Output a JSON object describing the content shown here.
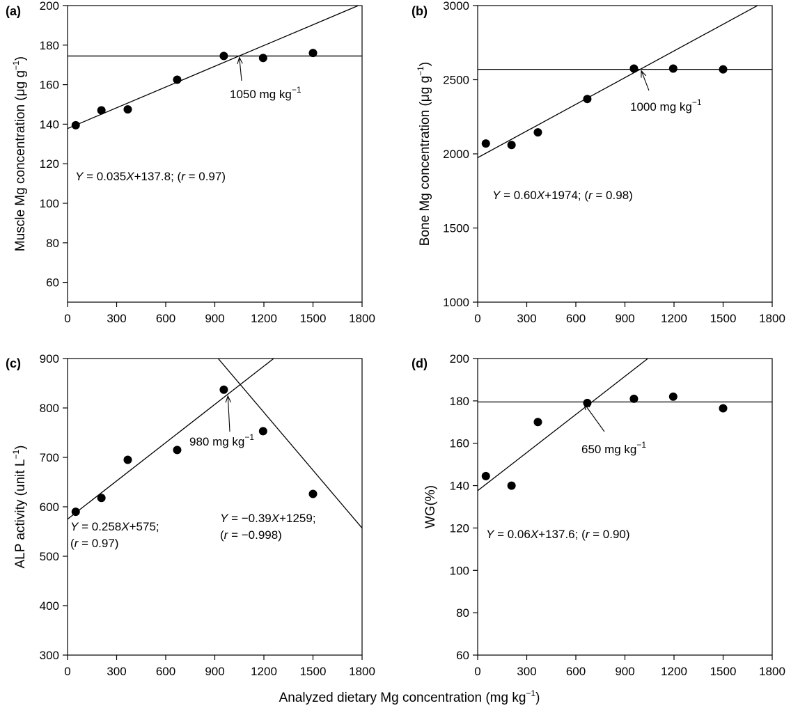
{
  "figure": {
    "shared_xlabel": "Analyzed dietary Mg concentration (mg kg−1)",
    "shared_xlabel_base": "Analyzed dietary Mg concentration (mg kg",
    "shared_xlabel_sup": "−1",
    "shared_xlabel_end": ")"
  },
  "chart_data": [
    {
      "type": "scatter",
      "panel": "(a)",
      "ylabel": "Muscle Mg concentration (μg g−1)",
      "ylabel_base": "Muscle Mg concentration (μg g",
      "ylabel_sup": "−1",
      "ylabel_end": ")",
      "xlim": [
        0,
        1800
      ],
      "ylim": [
        50,
        200
      ],
      "xticks": [
        0,
        300,
        600,
        900,
        1200,
        1500,
        1800
      ],
      "yticks": [
        60,
        80,
        100,
        120,
        140,
        160,
        180,
        200
      ],
      "x": [
        50,
        207,
        368,
        670,
        955,
        1195,
        1500
      ],
      "y": [
        139.5,
        147,
        147.5,
        162.5,
        174.5,
        173.5,
        176
      ],
      "lines": [
        {
          "kind": "linear",
          "slope": 0.035,
          "intercept": 137.8,
          "x_range": [
            0,
            1800
          ]
        },
        {
          "kind": "horizontal",
          "y": 174.5,
          "x_range": [
            0,
            1800
          ]
        }
      ],
      "annotations": [
        {
          "text": "1050 mg kg−1",
          "base": "1050 mg kg",
          "sup": "−1",
          "x": 1050,
          "y": 174.5
        }
      ],
      "equations": [
        {
          "lines": [
            [
              {
                "t": "Y",
                "i": true
              },
              {
                "t": " = 0.035"
              },
              {
                "t": "X",
                "i": true
              },
              {
                "t": "+137.8; ("
              },
              {
                "t": "r",
                "i": true
              },
              {
                "t": " = 0.97)"
              }
            ]
          ]
        }
      ]
    },
    {
      "type": "scatter",
      "panel": "(b)",
      "ylabel": "Bone Mg concentration (μg g−1)",
      "ylabel_base": "Bone Mg concentration  (μg g",
      "ylabel_sup": "−1",
      "ylabel_end": ")",
      "xlim": [
        0,
        1800
      ],
      "ylim": [
        1000,
        3000
      ],
      "xticks": [
        0,
        300,
        600,
        900,
        1200,
        1500,
        1800
      ],
      "yticks": [
        1000,
        1500,
        2000,
        2500,
        3000
      ],
      "x": [
        50,
        207,
        368,
        670,
        955,
        1195,
        1500
      ],
      "y": [
        2070,
        2060,
        2145,
        2370,
        2575,
        2575,
        2570
      ],
      "lines": [
        {
          "kind": "linear",
          "slope": 0.6,
          "intercept": 1974,
          "x_range": [
            0,
            1800
          ]
        },
        {
          "kind": "horizontal",
          "y": 2570,
          "x_range": [
            0,
            1800
          ]
        }
      ],
      "annotations": [
        {
          "text": "1000 mg kg−1",
          "base": "1000 mg kg",
          "sup": "−1",
          "x": 1000,
          "y": 2570
        }
      ],
      "equations": [
        {
          "lines": [
            [
              {
                "t": "Y",
                "i": true
              },
              {
                "t": " = 0.60"
              },
              {
                "t": "X",
                "i": true
              },
              {
                "t": "+1974; ("
              },
              {
                "t": "r",
                "i": true
              },
              {
                "t": " = 0.98)"
              }
            ]
          ]
        }
      ]
    },
    {
      "type": "scatter",
      "panel": "(c)",
      "ylabel": "ALP activity (unit L−1)",
      "ylabel_base": "ALP activity (unit L",
      "ylabel_sup": "−1",
      "ylabel_end": ")",
      "xlim": [
        0,
        1800
      ],
      "ylim": [
        300,
        900
      ],
      "xticks": [
        0,
        300,
        600,
        900,
        1200,
        1500,
        1800
      ],
      "yticks": [
        300,
        400,
        500,
        600,
        700,
        800,
        900
      ],
      "x": [
        50,
        207,
        368,
        670,
        955,
        1195,
        1500
      ],
      "y": [
        590,
        618,
        695,
        715,
        837,
        753,
        626
      ],
      "lines": [
        {
          "kind": "linear",
          "slope": 0.258,
          "intercept": 575,
          "x_range": [
            0,
            1800
          ]
        },
        {
          "kind": "linear",
          "slope": -0.39,
          "intercept": 1259,
          "x_range": [
            0,
            1800
          ]
        }
      ],
      "annotations": [
        {
          "text": "980 mg kg−1",
          "base": "980 mg kg",
          "sup": "−1",
          "x": 980,
          "y": 827
        }
      ],
      "equations": [
        {
          "lines": [
            [
              {
                "t": "Y",
                "i": true
              },
              {
                "t": " = 0.258"
              },
              {
                "t": "X",
                "i": true
              },
              {
                "t": "+575;"
              }
            ],
            [
              {
                "t": "("
              },
              {
                "t": "r",
                "i": true
              },
              {
                "t": " = 0.97)"
              }
            ]
          ]
        },
        {
          "lines": [
            [
              {
                "t": "Y",
                "i": true
              },
              {
                "t": " = −0.39"
              },
              {
                "t": "X",
                "i": true
              },
              {
                "t": "+1259;"
              }
            ],
            [
              {
                "t": "("
              },
              {
                "t": "r",
                "i": true
              },
              {
                "t": " = −0.998)"
              }
            ]
          ]
        }
      ]
    },
    {
      "type": "scatter",
      "panel": "(d)",
      "ylabel": "WG(%)",
      "ylabel_base": "WG(%)",
      "ylabel_sup": "",
      "ylabel_end": "",
      "xlim": [
        0,
        1800
      ],
      "ylim": [
        60,
        200
      ],
      "xticks": [
        0,
        300,
        600,
        900,
        1200,
        1500,
        1800
      ],
      "yticks": [
        60,
        80,
        100,
        120,
        140,
        160,
        180,
        200
      ],
      "x": [
        50,
        207,
        368,
        670,
        955,
        1195,
        1500
      ],
      "y": [
        144.5,
        140,
        170,
        179,
        181,
        182,
        176.5
      ],
      "lines": [
        {
          "kind": "linear",
          "slope": 0.06,
          "intercept": 137.6,
          "x_range": [
            0,
            1800
          ]
        },
        {
          "kind": "horizontal",
          "y": 179.5,
          "x_range": [
            0,
            1800
          ]
        }
      ],
      "annotations": [
        {
          "text": "650 mg kg−1",
          "base": "650 mg kg",
          "sup": "−1",
          "x": 650,
          "y": 179.5
        }
      ],
      "equations": [
        {
          "lines": [
            [
              {
                "t": "Y",
                "i": true
              },
              {
                "t": " = 0.06"
              },
              {
                "t": "X",
                "i": true
              },
              {
                "t": "+137.6; ("
              },
              {
                "t": "r",
                "i": true
              },
              {
                "t": " = 0.90)"
              }
            ]
          ]
        }
      ]
    }
  ]
}
